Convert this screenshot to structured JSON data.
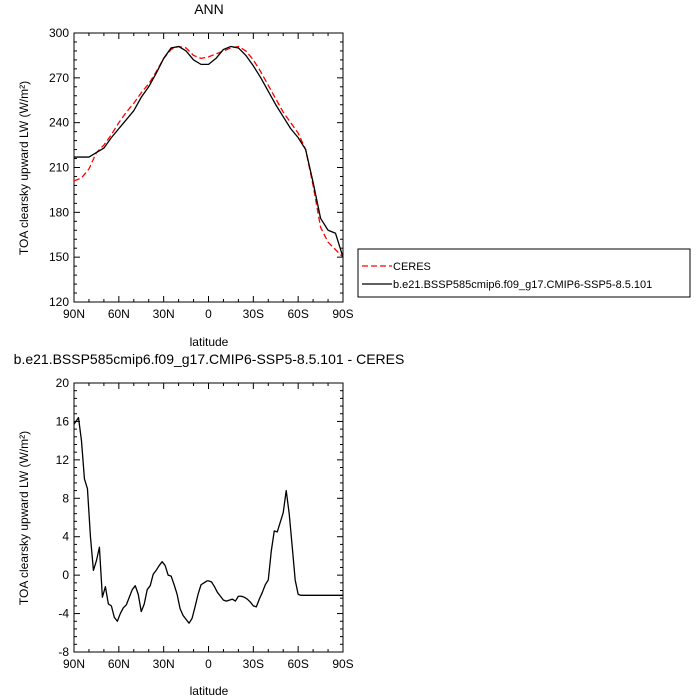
{
  "chart_data": [
    {
      "type": "line",
      "title": "ANN",
      "xlabel": "latitude",
      "ylabel": "TOA clearsky upward LW (W/m²)",
      "xlim": [
        90,
        -90
      ],
      "ylim": [
        120,
        300
      ],
      "xticks": [
        90,
        60,
        30,
        0,
        -30,
        -60,
        -90
      ],
      "xtick_labels": [
        "90N",
        "60N",
        "30N",
        "0",
        "30S",
        "60S",
        "90S"
      ],
      "yticks": [
        120,
        150,
        180,
        210,
        240,
        270,
        300
      ],
      "ytick_labels": [
        "120",
        "150",
        "180",
        "210",
        "240",
        "270",
        "300"
      ],
      "legend_position": "right",
      "series": [
        {
          "name": "CERES",
          "color": "#ff0000",
          "dash": "dashed",
          "x": [
            90,
            85,
            80,
            75,
            70,
            65,
            60,
            55,
            50,
            45,
            40,
            35,
            30,
            25,
            20,
            15,
            10,
            5,
            0,
            -5,
            -10,
            -15,
            -20,
            -25,
            -30,
            -35,
            -40,
            -45,
            -50,
            -55,
            -60,
            -65,
            -70,
            -75,
            -80,
            -85,
            -90
          ],
          "y": [
            201,
            203,
            209,
            220,
            225,
            232,
            240,
            247,
            253,
            260,
            266,
            274,
            283,
            289,
            291,
            290,
            285,
            283,
            284,
            286,
            288,
            290,
            291,
            288,
            282,
            274,
            265,
            256,
            247,
            240,
            233,
            222,
            198,
            170,
            160,
            155,
            150
          ]
        },
        {
          "name": "b.e21.BSSP585cmip6.f09_g17.CMIP6-SSP5-8.5.101",
          "color": "#000000",
          "dash": "solid",
          "x": [
            90,
            85,
            80,
            75,
            70,
            65,
            60,
            55,
            50,
            45,
            40,
            35,
            30,
            25,
            20,
            15,
            10,
            5,
            0,
            -5,
            -10,
            -15,
            -20,
            -25,
            -30,
            -35,
            -40,
            -45,
            -50,
            -55,
            -60,
            -65,
            -70,
            -75,
            -80,
            -85,
            -90
          ],
          "y": [
            217,
            217,
            217,
            220,
            223,
            230,
            236,
            242,
            248,
            257,
            264,
            273,
            283,
            290,
            291,
            288,
            282,
            279,
            279,
            283,
            289,
            291,
            290,
            285,
            278,
            270,
            261,
            252,
            244,
            236,
            230,
            222,
            200,
            176,
            168,
            166,
            150
          ]
        }
      ]
    },
    {
      "type": "line",
      "title": "b.e21.BSSP585cmip6.f09_g17.CMIP6-SSP5-8.5.101 - CERES",
      "xlabel": "latitude",
      "ylabel": "TOA clearsky upward LW (W/m²)",
      "xlim": [
        90,
        -90
      ],
      "ylim": [
        -8,
        20
      ],
      "xticks": [
        90,
        60,
        30,
        0,
        -30,
        -60,
        -90
      ],
      "xtick_labels": [
        "90N",
        "60N",
        "30N",
        "0",
        "30S",
        "60S",
        "90S"
      ],
      "yticks": [
        -8,
        -4,
        0,
        4,
        8,
        12,
        16,
        20
      ],
      "ytick_labels": [
        "-8",
        "-4",
        "0",
        "4",
        "8",
        "12",
        "16",
        "20"
      ],
      "series": [
        {
          "color": "#000000",
          "dash": "solid",
          "x": [
            90,
            87,
            85,
            83,
            81,
            79,
            77,
            75,
            73,
            71,
            69,
            67,
            65,
            63,
            61,
            59,
            57,
            55,
            53,
            51,
            49,
            47,
            45,
            43,
            41,
            39,
            37,
            35,
            33,
            31,
            29,
            27,
            25,
            23,
            21,
            19,
            17,
            15,
            13,
            11,
            9,
            7,
            5,
            3,
            1,
            0,
            -2,
            -4,
            -6,
            -8,
            -10,
            -12,
            -14,
            -16,
            -18,
            -20,
            -22,
            -24,
            -26,
            -28,
            -30,
            -32,
            -34,
            -36,
            -38,
            -40,
            -42,
            -44,
            -46,
            -48,
            -50,
            -52,
            -54,
            -56,
            -58,
            -60,
            -62,
            -64,
            -66,
            -68,
            -70,
            -72,
            -74,
            -76,
            -78,
            -80,
            -82,
            -84,
            -86,
            -88,
            -90
          ],
          "y": [
            15.7,
            16.4,
            14.0,
            10.0,
            9.0,
            4.0,
            0.5,
            1.5,
            2.9,
            -2.3,
            -1.2,
            -3.0,
            -3.2,
            -4.4,
            -4.8,
            -4.0,
            -3.4,
            -3.1,
            -2.3,
            -1.5,
            -1.1,
            -2.0,
            -3.8,
            -3.0,
            -1.5,
            -1.1,
            0.1,
            0.5,
            1.0,
            1.4,
            1.0,
            0.0,
            -0.1,
            -1.0,
            -2.0,
            -3.5,
            -4.2,
            -4.6,
            -5.0,
            -4.5,
            -3.3,
            -2.0,
            -1.0,
            -0.8,
            -0.6,
            -0.6,
            -0.7,
            -1.2,
            -1.8,
            -2.2,
            -2.6,
            -2.7,
            -2.6,
            -2.5,
            -2.7,
            -2.2,
            -2.2,
            -2.3,
            -2.5,
            -2.8,
            -3.2,
            -3.3,
            -2.5,
            -1.8,
            -1.0,
            -0.5,
            2.5,
            4.6,
            4.5,
            5.5,
            6.5,
            8.8,
            6.4,
            3.0,
            -0.5,
            -2.0,
            -2.1,
            -2.1,
            -2.1,
            -2.1,
            -2.1,
            -2.1,
            -2.1,
            -2.1,
            -2.1,
            -2.1,
            -2.1,
            -2.1,
            -2.1,
            -2.1,
            -2.1
          ]
        }
      ]
    }
  ]
}
